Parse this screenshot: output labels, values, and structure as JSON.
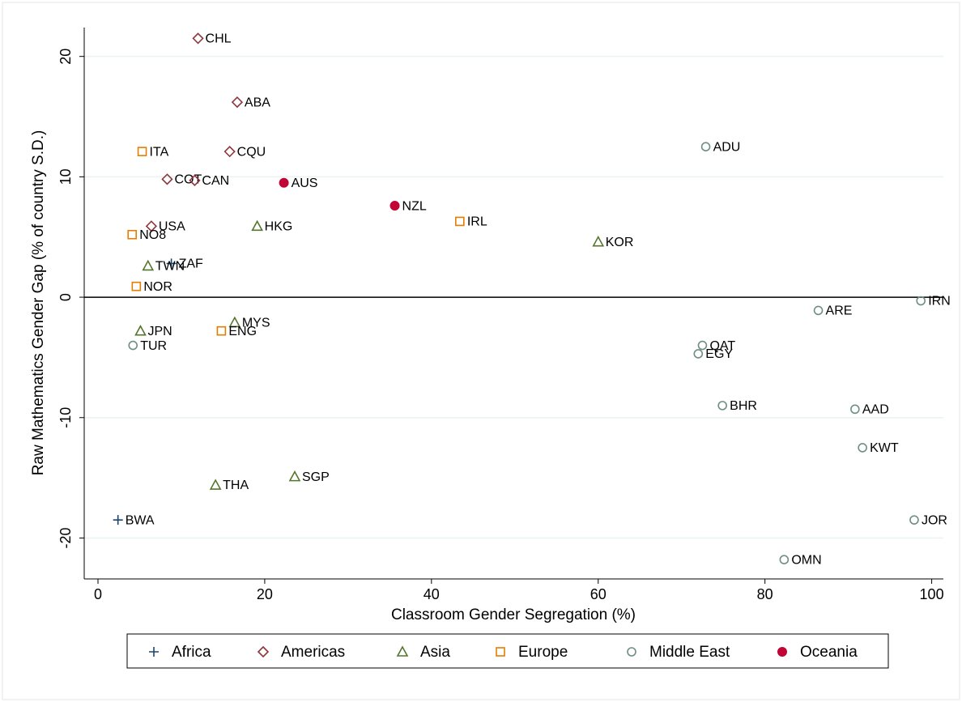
{
  "chart_data": {
    "type": "scatter",
    "xlabel": "Classroom Gender Segregation (%)",
    "ylabel": "Raw Mathematics Gender Gap (% of country S.D.)",
    "xlim": [
      -1.65,
      101.4
    ],
    "xticks": [
      0,
      20,
      40,
      60,
      80,
      100
    ],
    "ylim": [
      -23.4,
      22.4
    ],
    "yticks": [
      -20,
      -10,
      0,
      10,
      20
    ],
    "grid": true,
    "reference_line": 0,
    "legend": "bottom",
    "series": [
      {
        "name": "Africa",
        "color": "#1a476f",
        "marker": "plus",
        "labels": [
          "BWA",
          "ZAF"
        ],
        "x": [
          2.4,
          8.8
        ],
        "values": [
          -18.5,
          2.8
        ]
      },
      {
        "name": "Americas",
        "color": "#90353b",
        "marker": "diamond",
        "labels": [
          "CHL",
          "ABA",
          "CQU",
          "COT",
          "CAN",
          "USA"
        ],
        "x": [
          12.0,
          16.7,
          15.8,
          8.3,
          11.6,
          6.4
        ],
        "values": [
          21.5,
          16.2,
          12.1,
          9.8,
          9.7,
          5.9
        ]
      },
      {
        "name": "Asia",
        "color": "#55752f",
        "marker": "triangle",
        "labels": [
          "HKG",
          "TWN",
          "JPN",
          "MYS",
          "THA",
          "SGP",
          "KOR"
        ],
        "x": [
          19.1,
          6.0,
          5.1,
          16.4,
          14.1,
          23.6,
          60.0
        ],
        "values": [
          5.9,
          2.6,
          -2.8,
          -2.1,
          -15.6,
          -14.9,
          4.6
        ]
      },
      {
        "name": "Europe",
        "color": "#e37e00",
        "marker": "square",
        "labels": [
          "ITA",
          "NO8",
          "NOR",
          "ENG",
          "IRL"
        ],
        "x": [
          5.3,
          4.1,
          4.6,
          14.8,
          43.4
        ],
        "values": [
          12.1,
          5.2,
          0.9,
          -2.8,
          6.3
        ]
      },
      {
        "name": "Middle East",
        "color": "#6e8e84",
        "marker": "circle",
        "labels": [
          "ADU",
          "TUR",
          "ARE",
          "IRN",
          "QAT",
          "EGY",
          "BHR",
          "AAD",
          "KWT",
          "JOR",
          "OMN"
        ],
        "x": [
          72.9,
          4.2,
          86.4,
          98.7,
          72.5,
          72.0,
          74.9,
          90.8,
          91.7,
          97.9,
          82.3
        ],
        "values": [
          12.5,
          -4.0,
          -1.1,
          -0.3,
          -4.0,
          -4.7,
          -9.0,
          -9.3,
          -12.5,
          -18.5,
          -21.8
        ]
      },
      {
        "name": "Oceania",
        "color": "#c10534",
        "marker": "circle-filled",
        "labels": [
          "AUS",
          "NZL"
        ],
        "x": [
          22.3,
          35.6
        ],
        "values": [
          9.5,
          7.6
        ]
      }
    ]
  }
}
